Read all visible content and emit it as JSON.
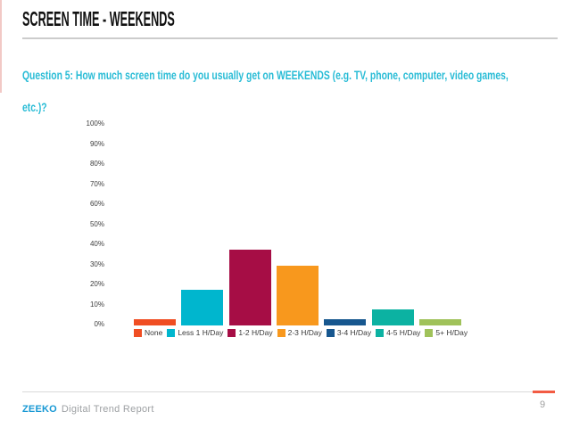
{
  "slide": {
    "title": "SCREEN TIME - WEEKENDS",
    "question_line1": "Question 5: How much screen time do you usually get on WEEKENDS (e.g. TV, phone, computer, video games,",
    "question_line2": "etc.)?",
    "question_color": "#29bcd6"
  },
  "chart_data": {
    "type": "bar",
    "title": "",
    "xlabel": "",
    "ylabel": "",
    "categories": [
      "None",
      "Less 1 H/Day",
      "1-2 H/Day",
      "2-3 H/Day",
      "3-4 H/Day",
      "4-5 H/Day",
      "5+ H/Day"
    ],
    "values": [
      3,
      18,
      38,
      30,
      3,
      8,
      3
    ],
    "unit": "%",
    "colors": [
      "#f04e23",
      "#00b6ce",
      "#a60d45",
      "#f8981d",
      "#17578f",
      "#0cb2a2",
      "#a0c25a"
    ],
    "ylim": [
      0,
      100
    ],
    "ytick_step": 10,
    "ytick_format": "percent",
    "grid": false,
    "legend_position": "bottom"
  },
  "footer": {
    "brand": "ZEEKO",
    "brand_suffix": "Digital Trend Report",
    "page_number": "9",
    "accent_color": "#f25b43"
  }
}
